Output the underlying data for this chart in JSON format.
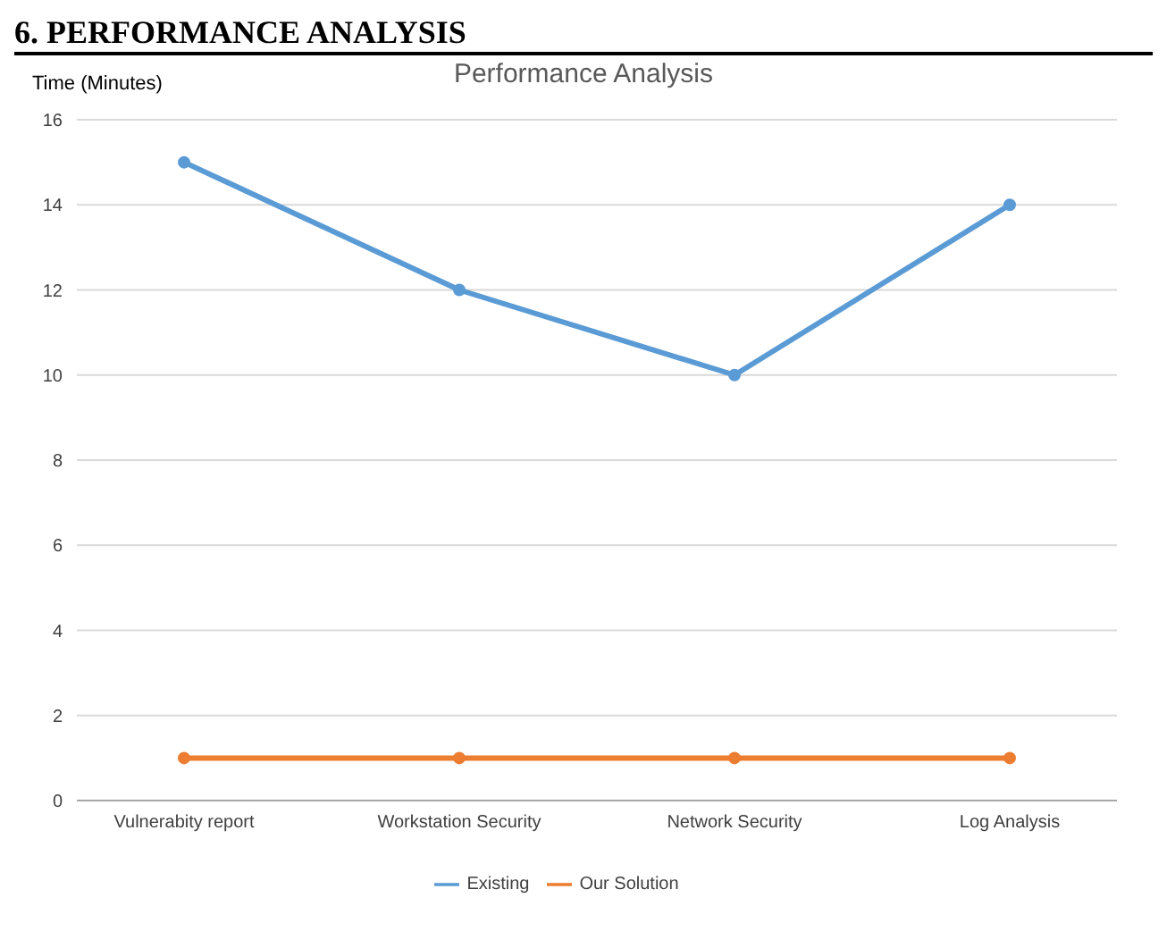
{
  "chart_data": {
    "type": "line",
    "title": "Performance Analysis",
    "ylabel": "Time (Minutes)",
    "annotations": [
      "6. PERFORMANCE ANALYSIS"
    ],
    "categories": [
      "Vulnerabity report",
      "Workstation Security",
      "Network Security",
      "Log Analysis"
    ],
    "series": [
      {
        "name": "Existing",
        "color": "#5b9bd5",
        "values": [
          15,
          12,
          10,
          14
        ]
      },
      {
        "name": "Our Solution",
        "color": "#ed7d31",
        "values": [
          1,
          1,
          1,
          1
        ]
      }
    ],
    "ylim": [
      0,
      16
    ],
    "yticks": [
      0,
      2,
      4,
      6,
      8,
      10,
      12,
      14,
      16
    ],
    "grid": "y",
    "legend": "bottom",
    "marker": "circle",
    "line_style": "solid"
  }
}
